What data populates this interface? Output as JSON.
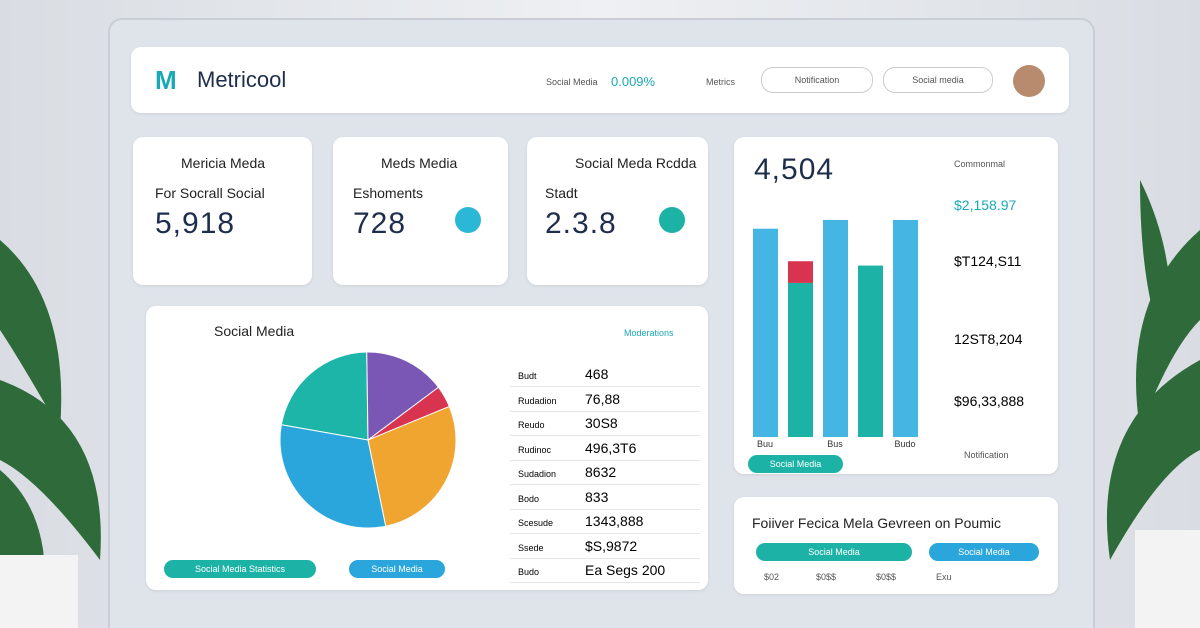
{
  "header": {
    "brand": "Metricool",
    "items": [
      "Social Media",
      "0.009%",
      "Metrics"
    ],
    "buttons": [
      "Notification",
      "Social media"
    ]
  },
  "cards": [
    {
      "title": "Mericia Meda",
      "subtitle": "For Socrall Social",
      "value": "5,918"
    },
    {
      "title": "Meds Media",
      "subtitle": "Eshoments",
      "value": "728"
    },
    {
      "title": "Social Meda Rcdda",
      "subtitle": "Stadt",
      "value": "2.3.8"
    }
  ],
  "summary": {
    "value": "4,504",
    "label": "Commonmal",
    "stats": [
      "$2,158.97",
      "$T124,S11",
      "12ST8,204",
      "$96,33,888"
    ],
    "footer": "Notification",
    "button": "Social Media"
  },
  "pie_panel": {
    "title": "Social Media",
    "link": "Moderations",
    "buttons": [
      "Social Media Statistics",
      "Social Media"
    ]
  },
  "chart_data": [
    {
      "type": "pie",
      "values": [
        22,
        15,
        4,
        28,
        31
      ],
      "colors": [
        "#1db5a8",
        "#7b57b5",
        "#d8344f",
        "#f0a531",
        "#2aa6dc"
      ]
    },
    {
      "type": "bar",
      "stacked": true,
      "categories": [
        "Buu",
        null,
        "Bus",
        null,
        "Budo"
      ],
      "ylim": [
        0,
        100
      ],
      "series": [
        {
          "color": "#45b6e3",
          "values": [
            96,
            null,
            100,
            null,
            100
          ]
        },
        {
          "color": "#1cb3a6",
          "values": [
            null,
            71,
            null,
            79,
            null
          ]
        },
        {
          "color": "#d8344f",
          "values": [
            null,
            10,
            null,
            null,
            null
          ]
        }
      ]
    }
  ],
  "table": {
    "rows": [
      [
        "Budt",
        "468"
      ],
      [
        "Rudadion",
        "76,88"
      ],
      [
        "Reudo",
        "30S8"
      ],
      [
        "Rudinoc",
        "496,3T6"
      ],
      [
        "Sudadion",
        "8632"
      ],
      [
        "Bodo",
        "833"
      ],
      [
        "Scesude",
        "1343,888"
      ],
      [
        "Ssede",
        "$S,9872"
      ],
      [
        "Budo",
        "Ea Segs 200"
      ]
    ]
  },
  "bottom": {
    "title": "Foiiver Fecica Mela Gevreen on Poumic",
    "buttons": [
      "Social Media",
      "Social Media"
    ],
    "labels": [
      "$02",
      "$0$$",
      "$0$$",
      "Exu"
    ]
  }
}
